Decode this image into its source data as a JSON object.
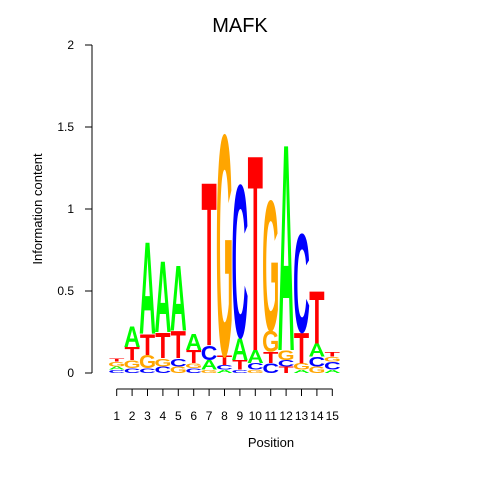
{
  "chart_data": {
    "type": "sequence-logo",
    "title": "MAFK",
    "xlabel": "Position",
    "ylabel": "Information content",
    "ylim": [
      0,
      2
    ],
    "yticks": [
      "0",
      "0.5",
      "1",
      "1.5",
      "2"
    ],
    "positions": [
      "1",
      "2",
      "3",
      "4",
      "5",
      "6",
      "7",
      "8",
      "9",
      "10",
      "11",
      "12",
      "13",
      "14",
      "15"
    ],
    "colors": {
      "A": "#00ff00",
      "C": "#0000ff",
      "G": "#ffa500",
      "T": "#ff0000"
    },
    "columns": [
      [
        [
          "C",
          0.02
        ],
        [
          "A",
          0.02
        ],
        [
          "G",
          0.03
        ],
        [
          "T",
          0.02
        ]
      ],
      [
        [
          "C",
          0.03
        ],
        [
          "G",
          0.05
        ],
        [
          "T",
          0.08
        ],
        [
          "A",
          0.13
        ]
      ],
      [
        [
          "C",
          0.03
        ],
        [
          "G",
          0.08
        ],
        [
          "T",
          0.13
        ],
        [
          "A",
          0.58
        ]
      ],
      [
        [
          "C",
          0.04
        ],
        [
          "G",
          0.05
        ],
        [
          "T",
          0.16
        ],
        [
          "A",
          0.45
        ]
      ],
      [
        [
          "G",
          0.04
        ],
        [
          "C",
          0.05
        ],
        [
          "T",
          0.17
        ],
        [
          "A",
          0.41
        ]
      ],
      [
        [
          "C",
          0.03
        ],
        [
          "G",
          0.03
        ],
        [
          "T",
          0.08
        ],
        [
          "A",
          0.1
        ]
      ],
      [
        [
          "G",
          0.02
        ],
        [
          "A",
          0.06
        ],
        [
          "C",
          0.09
        ],
        [
          "T",
          1.03
        ]
      ],
      [
        [
          "A",
          0.02
        ],
        [
          "C",
          0.03
        ],
        [
          "T",
          0.06
        ],
        [
          "G",
          1.39
        ]
      ],
      [
        [
          "C",
          0.02
        ],
        [
          "T",
          0.06
        ],
        [
          "A",
          0.14
        ],
        [
          "C",
          0.96
        ]
      ],
      [
        [
          "G",
          0.02
        ],
        [
          "C",
          0.04
        ],
        [
          "A",
          0.08
        ],
        [
          "T",
          1.23
        ]
      ],
      [
        [
          "C",
          0.06
        ],
        [
          "T",
          0.07
        ],
        [
          "G",
          0.13
        ],
        [
          "G",
          0.82
        ]
      ],
      [
        [
          "T",
          0.04
        ],
        [
          "C",
          0.04
        ],
        [
          "G",
          0.06
        ],
        [
          "A",
          1.3
        ]
      ],
      [
        [
          "A",
          0.02
        ],
        [
          "G",
          0.04
        ],
        [
          "T",
          0.19
        ],
        [
          "C",
          0.62
        ]
      ],
      [
        [
          "G",
          0.04
        ],
        [
          "C",
          0.06
        ],
        [
          "A",
          0.08
        ],
        [
          "T",
          0.33
        ]
      ],
      [
        [
          "A",
          0.02
        ],
        [
          "C",
          0.05
        ],
        [
          "G",
          0.03
        ],
        [
          "T",
          0.03
        ]
      ]
    ]
  }
}
